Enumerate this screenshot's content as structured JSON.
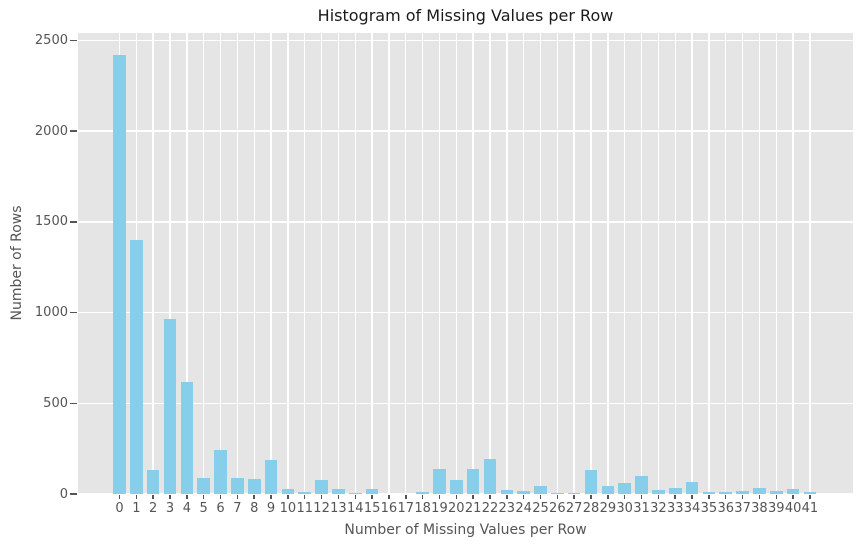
{
  "chart_data": {
    "type": "bar",
    "title": "Histogram of Missing Values per Row",
    "xlabel": "Number of Missing Values per Row",
    "ylabel": "Number of Rows",
    "categories": [
      0,
      1,
      2,
      3,
      4,
      5,
      6,
      7,
      8,
      9,
      10,
      11,
      12,
      13,
      14,
      15,
      16,
      17,
      18,
      19,
      20,
      21,
      22,
      23,
      24,
      25,
      26,
      27,
      28,
      29,
      30,
      31,
      32,
      33,
      34,
      35,
      36,
      37,
      38,
      39,
      40,
      41
    ],
    "values": [
      2420,
      1400,
      130,
      965,
      615,
      90,
      240,
      90,
      85,
      190,
      30,
      10,
      75,
      30,
      8,
      28,
      0,
      0,
      9,
      140,
      80,
      140,
      195,
      20,
      14,
      45,
      6,
      6,
      130,
      45,
      60,
      100,
      20,
      35,
      65,
      10,
      12,
      15,
      35,
      15,
      30,
      10
    ],
    "yticks": [
      0,
      500,
      1000,
      1500,
      2000,
      2500
    ],
    "ylim": [
      0,
      2541
    ],
    "grid": true,
    "legend": "none",
    "colors": {
      "bar": "#87CEEB",
      "plot_background": "#E5E5E5",
      "gridline": "#FFFFFF",
      "tick_text": "#555555",
      "title_text": "#1A1A1A"
    }
  }
}
